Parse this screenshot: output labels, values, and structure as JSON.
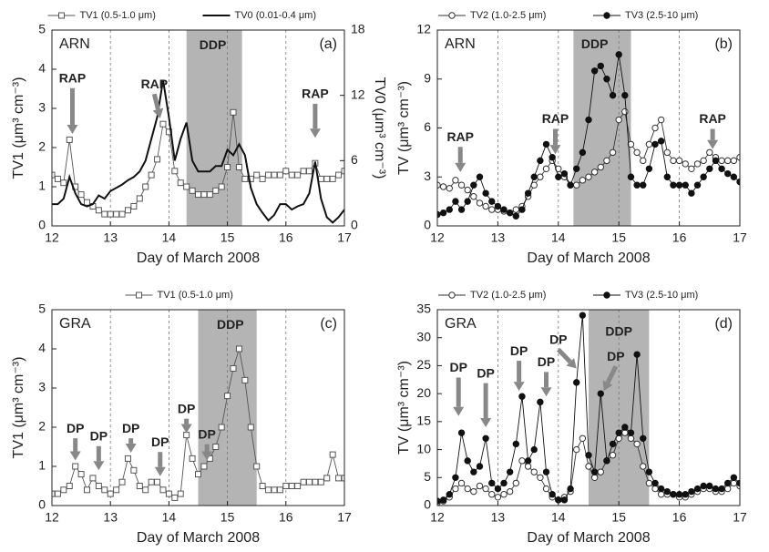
{
  "chart_data": [
    {
      "type": "line",
      "site": "ARN",
      "panel_label": "(a)",
      "annotations": [
        "RAP",
        "RAP",
        "RAP",
        "DDP"
      ],
      "x_label": "Day of March 2008",
      "y_label": "TV1 (μm³ cm⁻³)",
      "y2_label": "TV0 (μm³ cm⁻³)",
      "xlim": [
        12,
        17
      ],
      "xticks": [
        12,
        13,
        14,
        15,
        16,
        17
      ],
      "ylim": [
        0,
        5
      ],
      "yticks": [
        0,
        1,
        2,
        3,
        4,
        5
      ],
      "y2lim": [
        0,
        18
      ],
      "y2ticks": [
        0,
        6,
        12,
        18
      ],
      "shade": [
        14.3,
        15.25
      ],
      "shade_color": "#b4b4b4",
      "vlines": "dashed",
      "x": [
        12,
        12.1,
        12.2,
        12.3,
        12.4,
        12.5,
        12.6,
        12.7,
        12.8,
        12.9,
        13,
        13.1,
        13.2,
        13.3,
        13.4,
        13.5,
        13.6,
        13.7,
        13.8,
        13.9,
        14,
        14.1,
        14.2,
        14.3,
        14.4,
        14.5,
        14.6,
        14.7,
        14.8,
        14.9,
        15,
        15.1,
        15.2,
        15.3,
        15.4,
        15.5,
        15.6,
        15.7,
        15.8,
        15.9,
        16,
        16.1,
        16.2,
        16.3,
        16.4,
        16.5,
        16.6,
        16.7,
        16.8,
        16.9,
        17
      ],
      "series": [
        {
          "name": "TV1 (0.5-1.0 μm)",
          "color": "#555555",
          "marker": "square",
          "values": [
            1.3,
            1.2,
            1.1,
            2.2,
            1.0,
            0.8,
            0.6,
            0.5,
            0.4,
            0.3,
            0.3,
            0.3,
            0.3,
            0.4,
            0.5,
            0.7,
            1.0,
            1.3,
            1.7,
            2.6,
            2.4,
            1.4,
            1.1,
            1.0,
            0.9,
            0.8,
            0.8,
            0.8,
            0.9,
            1.0,
            1.5,
            2.9,
            1.5,
            1.2,
            1.2,
            1.3,
            1.2,
            1.3,
            1.3,
            1.3,
            1.4,
            1.3,
            1.3,
            1.4,
            1.4,
            1.6,
            1.2,
            1.2,
            1.2,
            1.3,
            1.4
          ]
        },
        {
          "name": "TV0 (0.01-0.4 μm)",
          "color": "#111111",
          "marker": "none",
          "axis": "y2",
          "values": [
            2.0,
            2.0,
            2.5,
            4.5,
            3.0,
            2.0,
            1.8,
            2.0,
            2.8,
            2.5,
            3.2,
            3.5,
            3.8,
            4.2,
            4.5,
            5.0,
            6.0,
            8.0,
            10.0,
            13.4,
            10.0,
            6.0,
            8.0,
            9.5,
            6.0,
            5.0,
            5.0,
            5.0,
            5.5,
            5.5,
            7.0,
            6.5,
            7.5,
            6.5,
            3.5,
            2.0,
            1.2,
            0.5,
            1.0,
            2.0,
            2.0,
            1.5,
            1.8,
            2.0,
            3.0,
            5.9,
            2.5,
            0.8,
            0.3,
            0.8,
            1.5
          ]
        }
      ]
    },
    {
      "type": "line",
      "site": "ARN",
      "panel_label": "(b)",
      "annotations": [
        "RAP",
        "RAP",
        "RAP",
        "DDP"
      ],
      "x_label": "Day of March 2008",
      "y_label": "TV (μm³ cm⁻³)",
      "xlim": [
        12,
        17
      ],
      "xticks": [
        12,
        13,
        14,
        15,
        16,
        17
      ],
      "ylim": [
        0,
        12
      ],
      "yticks": [
        0,
        3,
        6,
        9,
        12
      ],
      "shade": [
        14.25,
        15.2
      ],
      "shade_color": "#b4b4b4",
      "vlines": "dashed",
      "x": [
        12,
        12.1,
        12.2,
        12.3,
        12.4,
        12.5,
        12.6,
        12.7,
        12.8,
        12.9,
        13,
        13.1,
        13.2,
        13.3,
        13.4,
        13.5,
        13.6,
        13.7,
        13.8,
        13.9,
        14,
        14.1,
        14.2,
        14.3,
        14.4,
        14.5,
        14.6,
        14.7,
        14.8,
        14.9,
        15,
        15.1,
        15.2,
        15.3,
        15.4,
        15.5,
        15.6,
        15.7,
        15.8,
        15.9,
        16,
        16.1,
        16.2,
        16.3,
        16.4,
        16.5,
        16.6,
        16.7,
        16.8,
        16.9,
        17
      ],
      "series": [
        {
          "name": "TV2 (1.0-2.5 μm)",
          "color": "#333333",
          "marker": "circle-open",
          "values": [
            2.5,
            2.4,
            2.3,
            2.8,
            2.5,
            2.2,
            1.8,
            1.4,
            1.2,
            1.0,
            1.0,
            0.9,
            0.8,
            1.0,
            1.2,
            1.8,
            2.5,
            3.0,
            3.5,
            4.0,
            3.5,
            3.0,
            2.5,
            2.5,
            2.8,
            3.0,
            3.3,
            3.6,
            4.0,
            4.5,
            6.5,
            7.0,
            5.0,
            4.5,
            4.0,
            5.0,
            6.0,
            6.5,
            4.5,
            4.0,
            4.0,
            3.8,
            3.5,
            3.8,
            4.0,
            4.5,
            4.2,
            4.0,
            4.0,
            4.0,
            4.2
          ]
        },
        {
          "name": "TV3 (2.5-10 μm)",
          "color": "#111111",
          "marker": "circle-filled",
          "values": [
            0.7,
            0.8,
            1.0,
            1.5,
            1.0,
            1.5,
            2.5,
            3.0,
            2.0,
            1.5,
            1.2,
            1.0,
            0.8,
            0.6,
            1.0,
            2.0,
            3.0,
            4.0,
            5.0,
            4.2,
            3.0,
            3.2,
            2.5,
            3.5,
            4.5,
            6.5,
            9.5,
            9.8,
            9.0,
            8.0,
            10.5,
            8.0,
            3.0,
            2.5,
            2.5,
            3.5,
            5.0,
            5.2,
            3.0,
            2.5,
            2.5,
            2.5,
            2.0,
            2.5,
            3.0,
            3.5,
            4.0,
            3.5,
            3.2,
            3.0,
            2.7
          ]
        }
      ]
    },
    {
      "type": "line",
      "site": "GRA",
      "panel_label": "(c)",
      "annotations": [
        "DP",
        "DP",
        "DP",
        "DP",
        "DP",
        "DP",
        "DDP"
      ],
      "x_label": "Day of March 2008",
      "y_label": "TV1 (μm³ cm⁻³)",
      "xlim": [
        12,
        17
      ],
      "xticks": [
        12,
        13,
        14,
        15,
        16,
        17
      ],
      "ylim": [
        0,
        5
      ],
      "yticks": [
        0,
        1,
        2,
        3,
        4,
        5
      ],
      "shade": [
        14.5,
        15.5
      ],
      "shade_color": "#b4b4b4",
      "vlines": "dashed",
      "x": [
        12,
        12.1,
        12.2,
        12.3,
        12.4,
        12.5,
        12.6,
        12.7,
        12.8,
        12.9,
        13,
        13.1,
        13.2,
        13.3,
        13.4,
        13.5,
        13.6,
        13.7,
        13.8,
        13.9,
        14,
        14.1,
        14.2,
        14.3,
        14.4,
        14.5,
        14.6,
        14.7,
        14.8,
        14.9,
        15,
        15.1,
        15.2,
        15.3,
        15.4,
        15.5,
        15.6,
        15.7,
        15.8,
        15.9,
        16,
        16.1,
        16.2,
        16.3,
        16.4,
        16.5,
        16.6,
        16.7,
        16.8,
        16.9,
        17
      ],
      "series": [
        {
          "name": "TV1 (0.5-1.0 μm)",
          "color": "#555555",
          "marker": "square",
          "values": [
            0.3,
            0.3,
            0.4,
            0.5,
            1.0,
            0.8,
            0.4,
            0.7,
            0.5,
            0.4,
            0.3,
            0.4,
            0.6,
            1.2,
            0.9,
            0.5,
            0.4,
            0.6,
            0.6,
            0.4,
            0.3,
            0.2,
            0.3,
            1.8,
            1.2,
            0.8,
            1.0,
            1.2,
            1.5,
            2.0,
            2.8,
            3.5,
            4.0,
            3.2,
            2.0,
            1.0,
            0.5,
            0.4,
            0.4,
            0.4,
            0.5,
            0.5,
            0.5,
            0.6,
            0.6,
            0.6,
            0.6,
            0.7,
            1.3,
            0.7,
            0.7
          ]
        }
      ]
    },
    {
      "type": "line",
      "site": "GRA",
      "panel_label": "(d)",
      "annotations": [
        "DP",
        "DP",
        "DP",
        "DP",
        "DP",
        "DP",
        "DDP"
      ],
      "x_label": "Day of March 2008",
      "y_label": "TV (μm³ cm⁻³)",
      "xlim": [
        12,
        17
      ],
      "xticks": [
        12,
        13,
        14,
        15,
        16,
        17
      ],
      "ylim": [
        0,
        35
      ],
      "yticks": [
        0,
        5,
        10,
        15,
        20,
        25,
        30,
        35
      ],
      "shade": [
        14.5,
        15.5
      ],
      "shade_color": "#b4b4b4",
      "vlines": "dashed",
      "x": [
        12,
        12.1,
        12.2,
        12.3,
        12.4,
        12.5,
        12.6,
        12.7,
        12.8,
        12.9,
        13,
        13.1,
        13.2,
        13.3,
        13.4,
        13.5,
        13.6,
        13.7,
        13.8,
        13.9,
        14,
        14.1,
        14.2,
        14.3,
        14.4,
        14.5,
        14.6,
        14.7,
        14.8,
        14.9,
        15,
        15.1,
        15.2,
        15.3,
        15.4,
        15.5,
        15.6,
        15.7,
        15.8,
        15.9,
        16,
        16.1,
        16.2,
        16.3,
        16.4,
        16.5,
        16.6,
        16.7,
        16.8,
        16.9,
        17
      ],
      "series": [
        {
          "name": "TV2 (1.0-2.5 μm)",
          "color": "#333333",
          "marker": "circle-open",
          "values": [
            0.5,
            0.8,
            1.5,
            3.0,
            4.0,
            3.0,
            2.5,
            3.5,
            3.0,
            2.0,
            1.5,
            2.0,
            2.5,
            4.0,
            8.0,
            7.0,
            6.0,
            5.0,
            3.0,
            1.5,
            1.0,
            1.5,
            2.5,
            10,
            12,
            7,
            5,
            6,
            8,
            9,
            12,
            13,
            12,
            11,
            7,
            4,
            3,
            2,
            2,
            2,
            1.5,
            1.5,
            2,
            2.5,
            3,
            3,
            2.5,
            2.5,
            3,
            4,
            3.5
          ]
        },
        {
          "name": "TV3 (2.5-10 μm)",
          "color": "#111111",
          "marker": "circle-filled",
          "values": [
            0.8,
            1.0,
            2.0,
            5.0,
            13.0,
            8.0,
            6.0,
            7.0,
            12.0,
            4.0,
            3.0,
            4.0,
            6.0,
            11,
            19.5,
            8,
            10,
            18.5,
            6,
            2,
            1,
            1,
            3,
            22,
            34,
            9,
            6,
            20,
            8,
            11,
            13,
            14,
            13,
            27,
            12,
            6,
            4,
            3,
            2.5,
            2,
            2,
            2,
            2.5,
            3,
            3.5,
            3.5,
            3,
            3,
            4,
            5,
            4
          ]
        }
      ]
    }
  ]
}
